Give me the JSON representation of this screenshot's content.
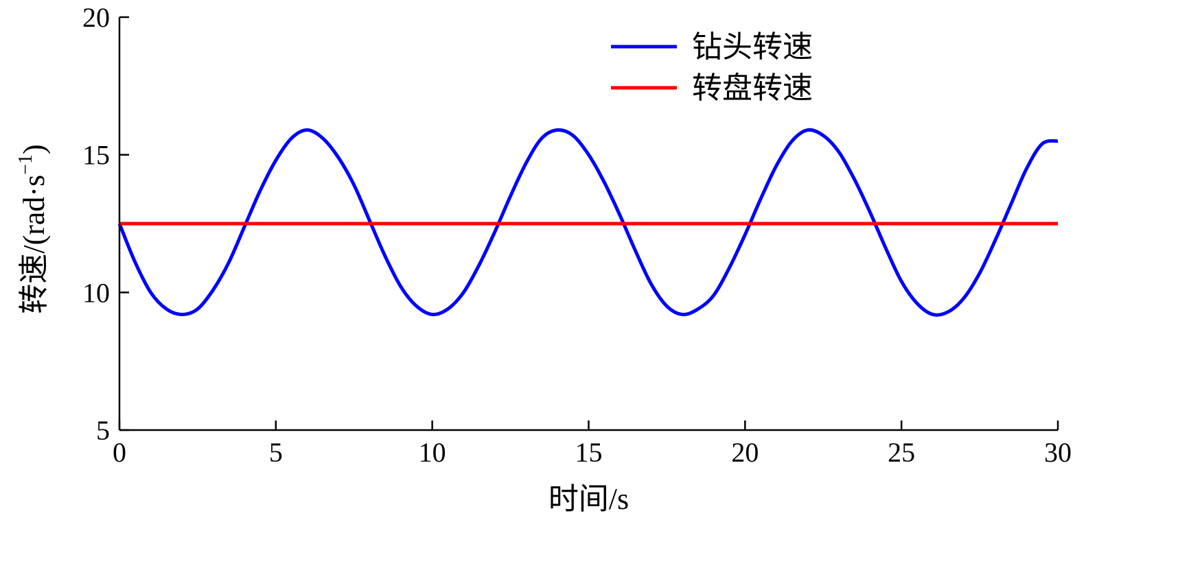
{
  "chart_data": {
    "type": "line",
    "title": "",
    "xlabel": "时间/s",
    "ylabel_main": "转速/(rad·s",
    "ylabel_sup": "−1",
    "ylabel_close": ")",
    "xlim": [
      0,
      30
    ],
    "ylim": [
      5,
      20
    ],
    "xticks": [
      0,
      5,
      10,
      15,
      20,
      25,
      30
    ],
    "yticks": [
      5,
      10,
      15,
      20
    ],
    "xtick_labels": [
      "0",
      "5",
      "10",
      "15",
      "20",
      "25",
      "30"
    ],
    "ytick_labels": [
      "5",
      "10",
      "15",
      "20"
    ],
    "grid": false,
    "legend_position": "top-right",
    "series": [
      {
        "name": "钻头转速",
        "color": "#0000ff",
        "x": [
          0,
          0.5,
          1,
          1.5,
          2,
          2.5,
          3,
          3.5,
          4,
          4.5,
          5,
          5.5,
          6,
          6.5,
          7,
          7.5,
          8,
          8.5,
          9,
          9.5,
          10,
          10.5,
          11,
          11.5,
          12,
          12.5,
          13,
          13.5,
          14,
          14.5,
          15,
          15.5,
          16,
          16.5,
          17,
          17.5,
          18,
          18.5,
          19,
          19.5,
          20,
          20.5,
          21,
          21.5,
          22,
          22.5,
          23,
          23.5,
          24,
          24.5,
          25,
          25.5,
          26,
          26.5,
          27,
          27.5,
          28,
          28.5,
          29,
          29.5,
          30
        ],
        "y": [
          12.5,
          11.1,
          10.0,
          9.4,
          9.2,
          9.4,
          10.1,
          11.1,
          12.4,
          13.7,
          14.8,
          15.6,
          15.9,
          15.6,
          14.9,
          13.9,
          12.6,
          11.3,
          10.2,
          9.5,
          9.2,
          9.4,
          10.0,
          11.0,
          12.2,
          13.5,
          14.7,
          15.6,
          15.9,
          15.7,
          15.0,
          14.0,
          12.8,
          11.5,
          10.3,
          9.5,
          9.2,
          9.4,
          9.9,
          10.9,
          12.1,
          13.4,
          14.6,
          15.5,
          15.9,
          15.7,
          15.1,
          14.1,
          12.9,
          11.6,
          10.4,
          9.6,
          9.2,
          9.3,
          9.8,
          10.7,
          11.9,
          13.2,
          14.5,
          15.4,
          15.5
        ]
      },
      {
        "name": "转盘转速",
        "color": "#ff0000",
        "x": [
          0,
          30
        ],
        "y": [
          12.5,
          12.5
        ]
      }
    ]
  }
}
